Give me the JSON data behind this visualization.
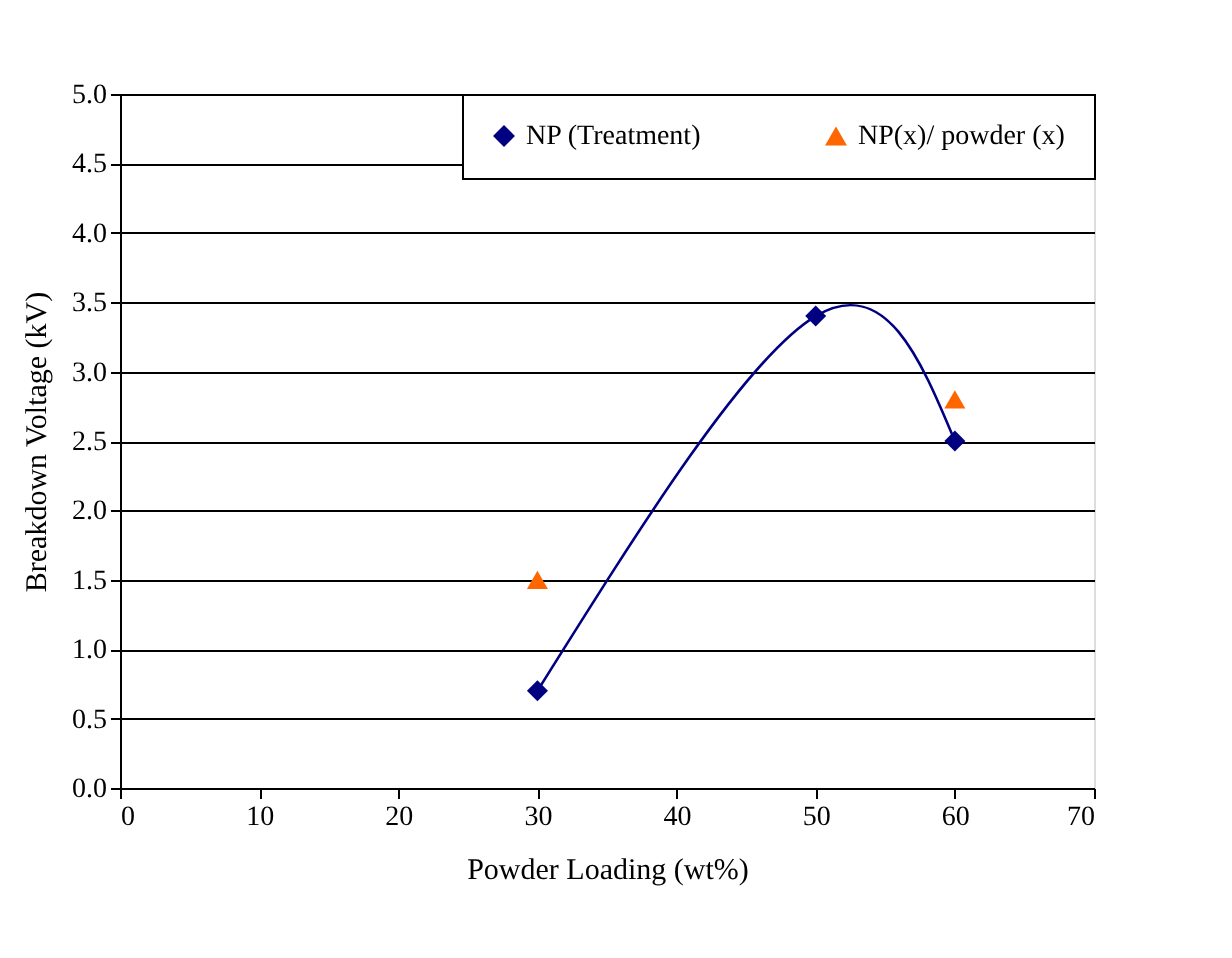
{
  "chart_data": {
    "type": "line",
    "xlabel": "Powder Loading (wt%)",
    "ylabel": "Breakdown Voltage (kV)",
    "xlim": [
      0,
      70
    ],
    "xticks": [
      0,
      10,
      20,
      30,
      40,
      50,
      60,
      70
    ],
    "ylim": [
      0,
      5
    ],
    "yticks": [
      {
        "value": 0,
        "label": "0.0"
      },
      {
        "value": 0.5,
        "label": "0.5"
      },
      {
        "value": 1,
        "label": "1.0"
      },
      {
        "value": 1.5,
        "label": "1.5"
      },
      {
        "value": 2,
        "label": "2.0"
      },
      {
        "value": 2.5,
        "label": "2.5"
      },
      {
        "value": 3,
        "label": "3.0"
      },
      {
        "value": 3.5,
        "label": "3.5"
      },
      {
        "value": 4,
        "label": "4.0"
      },
      {
        "value": 4.5,
        "label": "4.5"
      },
      {
        "value": 5,
        "label": "5.0"
      }
    ],
    "grid": "y",
    "legend": "top right",
    "series": [
      {
        "name": "NP (Treatment)",
        "marker": "diamond",
        "color": "#000080",
        "x": [
          30,
          50,
          60
        ],
        "values": [
          0.7,
          3.4,
          2.5
        ]
      },
      {
        "name": "NP(x)/ powder (x)",
        "type": "scatter",
        "marker": "triangle",
        "color": "#ff6600",
        "x": [
          30,
          60
        ],
        "values": [
          1.5,
          2.8
        ]
      }
    ]
  }
}
